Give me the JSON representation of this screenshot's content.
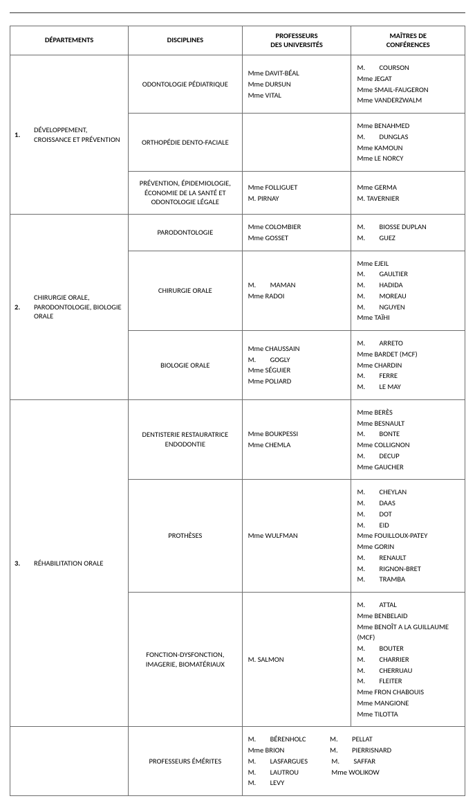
{
  "headers": {
    "departements": "DÉPARTEMENTS",
    "disciplines": "DISCIPLINES",
    "profs": "PROFESSEURS\nDES UNIVERSITÉS",
    "maitres": "MAÎTRES DE\nCONFÉRENCES"
  },
  "dept1": {
    "num": "1.",
    "label": "DÉVELOPPEMENT, CROISSANCE ET PRÉVENTION"
  },
  "dept2": {
    "num": "2.",
    "label": "CHIRURGIE ORALE, PARODONTOLOGIE, BIOLOGIE ORALE"
  },
  "dept3": {
    "num": "3.",
    "label": "RÉHABILITATION ORALE"
  },
  "r1": {
    "disc": "ODONTOLOGIE PÉDIATRIQUE",
    "p1": "Mme DAVIT-BÉAL",
    "p2": "Mme DURSUN",
    "p3": "Mme VITAL",
    "m1t": "M.",
    "m1": "COURSON",
    "m2": "Mme JEGAT",
    "m3": "Mme SMAIL-FAUGERON",
    "m4": "Mme VANDERZWALM"
  },
  "r2": {
    "disc": "ORTHOPÉDIE DENTO-FACIALE",
    "m1": "Mme BENAHMED",
    "m2t": "M.",
    "m2": "DUNGLAS",
    "m3": "Mme KAMOUN",
    "m4": "Mme LE NORCY"
  },
  "r3": {
    "disc": "PRÉVENTION, ÉPIDEMIOLOGIE, ÉCONOMIE DE LA SANTÉ ET ODONTOLOGIE LÉGALE",
    "p1": "Mme FOLLIGUET",
    "p2": "M. PIRNAY",
    "m1": "Mme GERMA",
    "m2": "M. TAVERNIER"
  },
  "r4": {
    "disc": "PARODONTOLOGIE",
    "p1": "Mme COLOMBIER",
    "p2": "Mme GOSSET",
    "m1t": "M.",
    "m1": "BIOSSE DUPLAN",
    "m2t": "M.",
    "m2": "GUEZ"
  },
  "r5": {
    "disc": "CHIRURGIE ORALE",
    "p1t": "M.",
    "p1": "MAMAN",
    "p2": "Mme RADOI",
    "m1": "Mme EJEIL",
    "m2t": "M.",
    "m2": "GAULTIER",
    "m3t": "M.",
    "m3": "HADIDA",
    "m4t": "M.",
    "m4": "MOREAU",
    "m5t": "M.",
    "m5": "NGUYEN",
    "m6": "Mme TAÏHI"
  },
  "r6": {
    "disc": "BIOLOGIE ORALE",
    "p1": "Mme  CHAUSSAIN",
    "p2t": "M.",
    "p2": "GOGLY",
    "p3": "Mme  SÉGUIER",
    "p4": "Mme  POLIARD",
    "m1t": "M.",
    "m1": "ARRETO",
    "m2": "Mme BARDET (MCF)",
    "m3": "Mme CHARDIN",
    "m4t": "M.",
    "m4": "FERRE",
    "m5t": "M.",
    "m5": "LE MAY"
  },
  "r7": {
    "disc": "DENTISTERIE RESTAURATRICE ENDODONTIE",
    "p1": "Mme BOUKPESSI",
    "p2": "Mme CHEMLA",
    "m1": "Mme BERÈS",
    "m2": "Mme BESNAULT",
    "m3t": "M.",
    "m3": "BONTE",
    "m4": "Mme COLLIGNON",
    "m5t": "M.",
    "m5": "DECUP",
    "m6": "Mme GAUCHER"
  },
  "r8": {
    "disc": "PROTHÈSES",
    "p1": "Mme WULFMAN",
    "m1t": "M.",
    "m1": "CHEYLAN",
    "m2t": "M.",
    "m2": "DAAS",
    "m3t": "M.",
    "m3": "DOT",
    "m4t": "M.",
    "m4": "EID",
    "m5": "Mme FOUILLOUX-PATEY",
    "m6": "Mme GORIN",
    "m7t": "M.",
    "m7": "RENAULT",
    "m8t": "M.",
    "m8": "RIGNON-BRET",
    "m9t": "M.",
    "m9": "TRAMBA"
  },
  "r9": {
    "disc": "FONCTION-DYSFONCTION, IMAGERIE, BIOMATÉRIAUX",
    "p1": "M. SALMON",
    "m1t": "M.",
    "m1": "ATTAL",
    "m2": "Mme BENBELAID",
    "m3": "Mme BENOÎT A LA GUILLAUME (MCF)",
    "m4t": "M.",
    "m4": "BOUTER",
    "m5t": "M.",
    "m5": "CHARRIER",
    "m6t": "M.",
    "m6": "CHERRUAU",
    "m7t": "M.",
    "m7": "FLEITER",
    "m8": "Mme FRON CHABOUIS",
    "m9": "Mme MANGIONE",
    "m10": "Mme TILOTTA"
  },
  "emerites": {
    "label": "PROFESSEURS ÉMÉRITES",
    "a1t": "M.",
    "a1": "BÉRENHOLC",
    "a2": "Mme BRION",
    "a3t": "M.",
    "a3": "LASFARGUES",
    "a4t": "M.",
    "a4": "LAUTROU",
    "a5t": "M.",
    "a5": "LEVY",
    "b1t": "M.",
    "b1": "PELLAT",
    "b2t": "M.",
    "b2": "PIERRISNARD",
    "b3t": "M.",
    "b3": "SAFFAR",
    "b4": "Mme WOLIKOW"
  }
}
